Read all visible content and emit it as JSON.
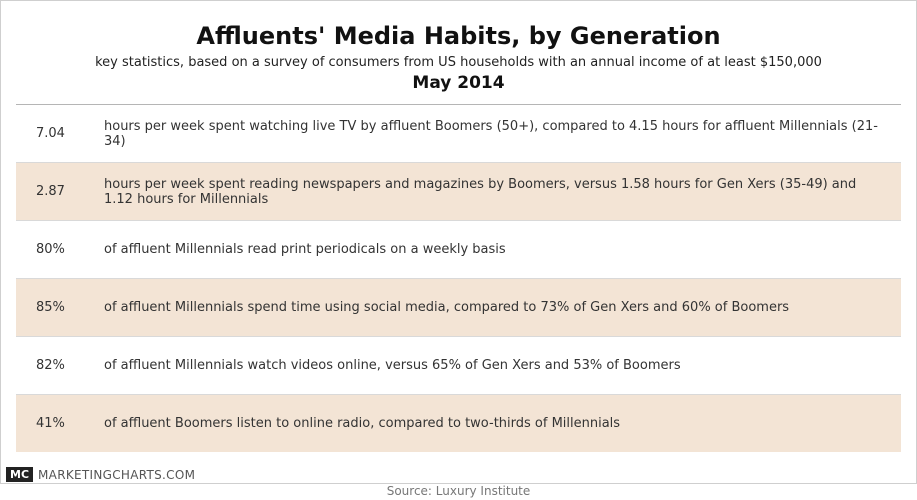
{
  "header": {
    "title": "Affluents' Media Habits, by Generation",
    "subtitle": "key statistics, based on a survey of consumers from US households with an annual income of at least $150,000",
    "date": "May 2014"
  },
  "rows": [
    {
      "value": "7.04",
      "text": "hours per week spent watching live TV by affluent Boomers (50+), compared to 4.15 hours for affluent Millennials (21-34)"
    },
    {
      "value": "2.87",
      "text": "hours per week spent reading newspapers and magazines by Boomers, versus 1.58 hours for Gen Xers (35-49) and 1.12 hours for Millennials"
    },
    {
      "value": "80%",
      "text": "of affluent Millennials read print periodicals on a weekly basis"
    },
    {
      "value": "85%",
      "text": "of affluent Millennials spend time using social media, compared to 73% of Gen Xers and 60% of Boomers"
    },
    {
      "value": "82%",
      "text": "of affluent Millennials watch videos online, versus 65% of Gen Xers and 53% of Boomers"
    },
    {
      "value": "41%",
      "text": "of affluent Boomers listen to online radio, compared to two-thirds of Millennials"
    }
  ],
  "footer": {
    "logo_mark": "MC",
    "logo_text": "MARKETINGCHARTS.COM",
    "source": "Source: Luxury Institute"
  },
  "colors": {
    "alt_row": "#f3e4d5",
    "text": "#333333"
  }
}
